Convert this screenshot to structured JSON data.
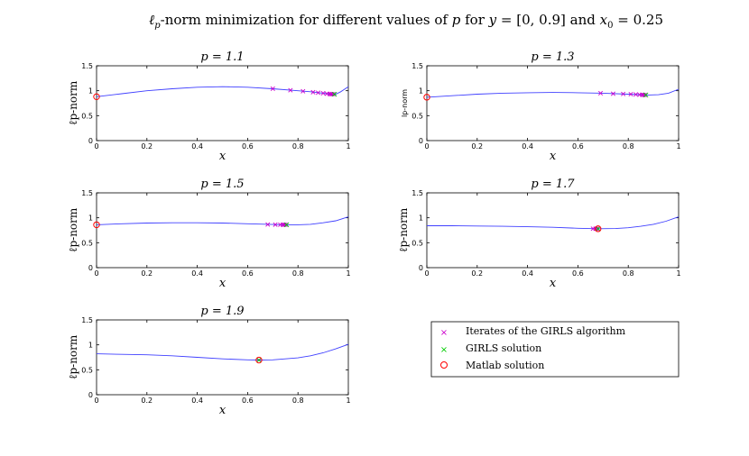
{
  "figure": {
    "title": "ℓp-norm minimization for different values of p for y = [0, 0.9] and x0 = 0.25",
    "title_parts": [
      "ℓ",
      "p",
      "-norm minimization for different values of ",
      "p",
      " for ",
      "y",
      " = [0, 0.9] and ",
      "x",
      "0",
      " = 0.25"
    ]
  },
  "legend": {
    "items": [
      {
        "label": "Iterates of the GIRLS algorithm",
        "marker": "x",
        "color": "#cc00cc"
      },
      {
        "label": "GIRLS solution",
        "marker": "x",
        "color": "#00cc00"
      },
      {
        "label": "Matlab solution",
        "marker": "o",
        "color": "#ff0000"
      }
    ]
  },
  "colors": {
    "curve": "#4040ff",
    "iterate": "#cc00cc",
    "girls_solution": "#00cc00",
    "matlab_solution": "#ff0000",
    "axis": "#000000"
  },
  "chart_data": [
    {
      "type": "line",
      "title": "p = 1.1",
      "p": 1.1,
      "xlabel": "x",
      "ylabel": "ℓp-norm",
      "xlim": [
        0,
        1
      ],
      "ylim": [
        0,
        1.5
      ],
      "xticks": [
        "0",
        "0.2",
        "0.4",
        "0.6",
        "0.8",
        "1"
      ],
      "yticks": [
        "0",
        "0.5",
        "1",
        "1.5"
      ],
      "curve": {
        "x": [
          0,
          0.1,
          0.2,
          0.3,
          0.4,
          0.5,
          0.6,
          0.7,
          0.8,
          0.85,
          0.9,
          0.93,
          0.95,
          0.97,
          1.0
        ],
        "y": [
          0.88,
          0.94,
          1.0,
          1.04,
          1.07,
          1.08,
          1.07,
          1.04,
          1.0,
          0.98,
          0.95,
          0.93,
          0.93,
          0.98,
          1.08
        ]
      },
      "iterates": {
        "x": [
          0.7,
          0.77,
          0.82,
          0.86,
          0.88,
          0.9,
          0.915,
          0.925,
          0.93,
          0.935,
          0.94
        ],
        "y": [
          1.04,
          1.01,
          0.99,
          0.97,
          0.96,
          0.95,
          0.94,
          0.935,
          0.93,
          0.93,
          0.93
        ]
      },
      "girls_solution": {
        "x": 0.945,
        "y": 0.93
      },
      "matlab_solution": {
        "x": 0.0,
        "y": 0.88
      }
    },
    {
      "type": "line",
      "title": "p = 1.3",
      "p": 1.3,
      "xlabel": "x",
      "ylabel": "lp-norm",
      "xlim": [
        0,
        1
      ],
      "ylim": [
        0,
        1.5
      ],
      "xticks": [
        "0",
        "0.2",
        "0.4",
        "0.6",
        "0.8",
        "1"
      ],
      "yticks": [
        "0",
        "0.5",
        "1",
        "1.5"
      ],
      "curve": {
        "x": [
          0,
          0.1,
          0.2,
          0.3,
          0.4,
          0.5,
          0.6,
          0.7,
          0.8,
          0.85,
          0.88,
          0.92,
          0.96,
          1.0
        ],
        "y": [
          0.87,
          0.9,
          0.93,
          0.95,
          0.96,
          0.965,
          0.96,
          0.95,
          0.93,
          0.92,
          0.915,
          0.92,
          0.95,
          1.03
        ]
      },
      "iterates": {
        "x": [
          0.69,
          0.74,
          0.78,
          0.81,
          0.83,
          0.845,
          0.855,
          0.86,
          0.865
        ],
        "y": [
          0.95,
          0.94,
          0.935,
          0.93,
          0.925,
          0.92,
          0.92,
          0.915,
          0.915
        ]
      },
      "girls_solution": {
        "x": 0.87,
        "y": 0.915
      },
      "matlab_solution": {
        "x": 0.0,
        "y": 0.87
      }
    },
    {
      "type": "line",
      "title": "p = 1.5",
      "p": 1.5,
      "xlabel": "x",
      "ylabel": "ℓp-norm",
      "xlim": [
        0,
        1
      ],
      "ylim": [
        0,
        1.5
      ],
      "xticks": [
        "0",
        "0.2",
        "0.4",
        "0.6",
        "0.8",
        "1"
      ],
      "yticks": [
        "0",
        "0.5",
        "1",
        "1.5"
      ],
      "curve": {
        "x": [
          0,
          0.1,
          0.2,
          0.3,
          0.4,
          0.5,
          0.6,
          0.7,
          0.75,
          0.8,
          0.85,
          0.9,
          0.95,
          1.0
        ],
        "y": [
          0.86,
          0.88,
          0.895,
          0.9,
          0.9,
          0.895,
          0.88,
          0.865,
          0.86,
          0.86,
          0.87,
          0.9,
          0.94,
          1.02
        ]
      },
      "iterates": {
        "x": [
          0.68,
          0.71,
          0.73,
          0.74,
          0.745,
          0.75
        ],
        "y": [
          0.865,
          0.862,
          0.86,
          0.86,
          0.86,
          0.86
        ]
      },
      "girls_solution": {
        "x": 0.755,
        "y": 0.86
      },
      "matlab_solution": {
        "x": 0.0,
        "y": 0.86
      }
    },
    {
      "type": "line",
      "title": "p = 1.7",
      "p": 1.7,
      "xlabel": "x",
      "ylabel": "ℓp-norm",
      "xlim": [
        0,
        1
      ],
      "ylim": [
        0,
        1.5
      ],
      "xticks": [
        "0",
        "0.2",
        "0.4",
        "0.6",
        "0.8",
        "1"
      ],
      "yticks": [
        "0",
        "0.5",
        "1",
        "1.5"
      ],
      "curve": {
        "x": [
          0,
          0.1,
          0.2,
          0.3,
          0.4,
          0.5,
          0.6,
          0.68,
          0.75,
          0.8,
          0.85,
          0.9,
          0.95,
          1.0
        ],
        "y": [
          0.84,
          0.84,
          0.835,
          0.83,
          0.82,
          0.81,
          0.79,
          0.78,
          0.785,
          0.8,
          0.83,
          0.87,
          0.93,
          1.02
        ]
      },
      "iterates": {
        "x": [
          0.66,
          0.67,
          0.675
        ],
        "y": [
          0.782,
          0.78,
          0.78
        ]
      },
      "girls_solution": {
        "x": 0.68,
        "y": 0.78
      },
      "matlab_solution": {
        "x": 0.68,
        "y": 0.78
      }
    },
    {
      "type": "line",
      "title": "p = 1.9",
      "p": 1.9,
      "xlabel": "x",
      "ylabel": "ℓp-norm",
      "xlim": [
        0,
        1
      ],
      "ylim": [
        0,
        1.5
      ],
      "xticks": [
        "0",
        "0.2",
        "0.4",
        "0.6",
        "0.8",
        "1"
      ],
      "yticks": [
        "0",
        "0.5",
        "1",
        "1.5"
      ],
      "curve": {
        "x": [
          0,
          0.1,
          0.2,
          0.3,
          0.4,
          0.5,
          0.6,
          0.64,
          0.7,
          0.8,
          0.85,
          0.9,
          0.95,
          1.0
        ],
        "y": [
          0.82,
          0.81,
          0.8,
          0.78,
          0.75,
          0.72,
          0.7,
          0.695,
          0.7,
          0.74,
          0.78,
          0.84,
          0.92,
          1.01
        ]
      },
      "iterates": {
        "x": [
          0.645
        ],
        "y": [
          0.695
        ]
      },
      "girls_solution": {
        "x": 0.645,
        "y": 0.695
      },
      "matlab_solution": {
        "x": 0.645,
        "y": 0.695
      }
    }
  ]
}
